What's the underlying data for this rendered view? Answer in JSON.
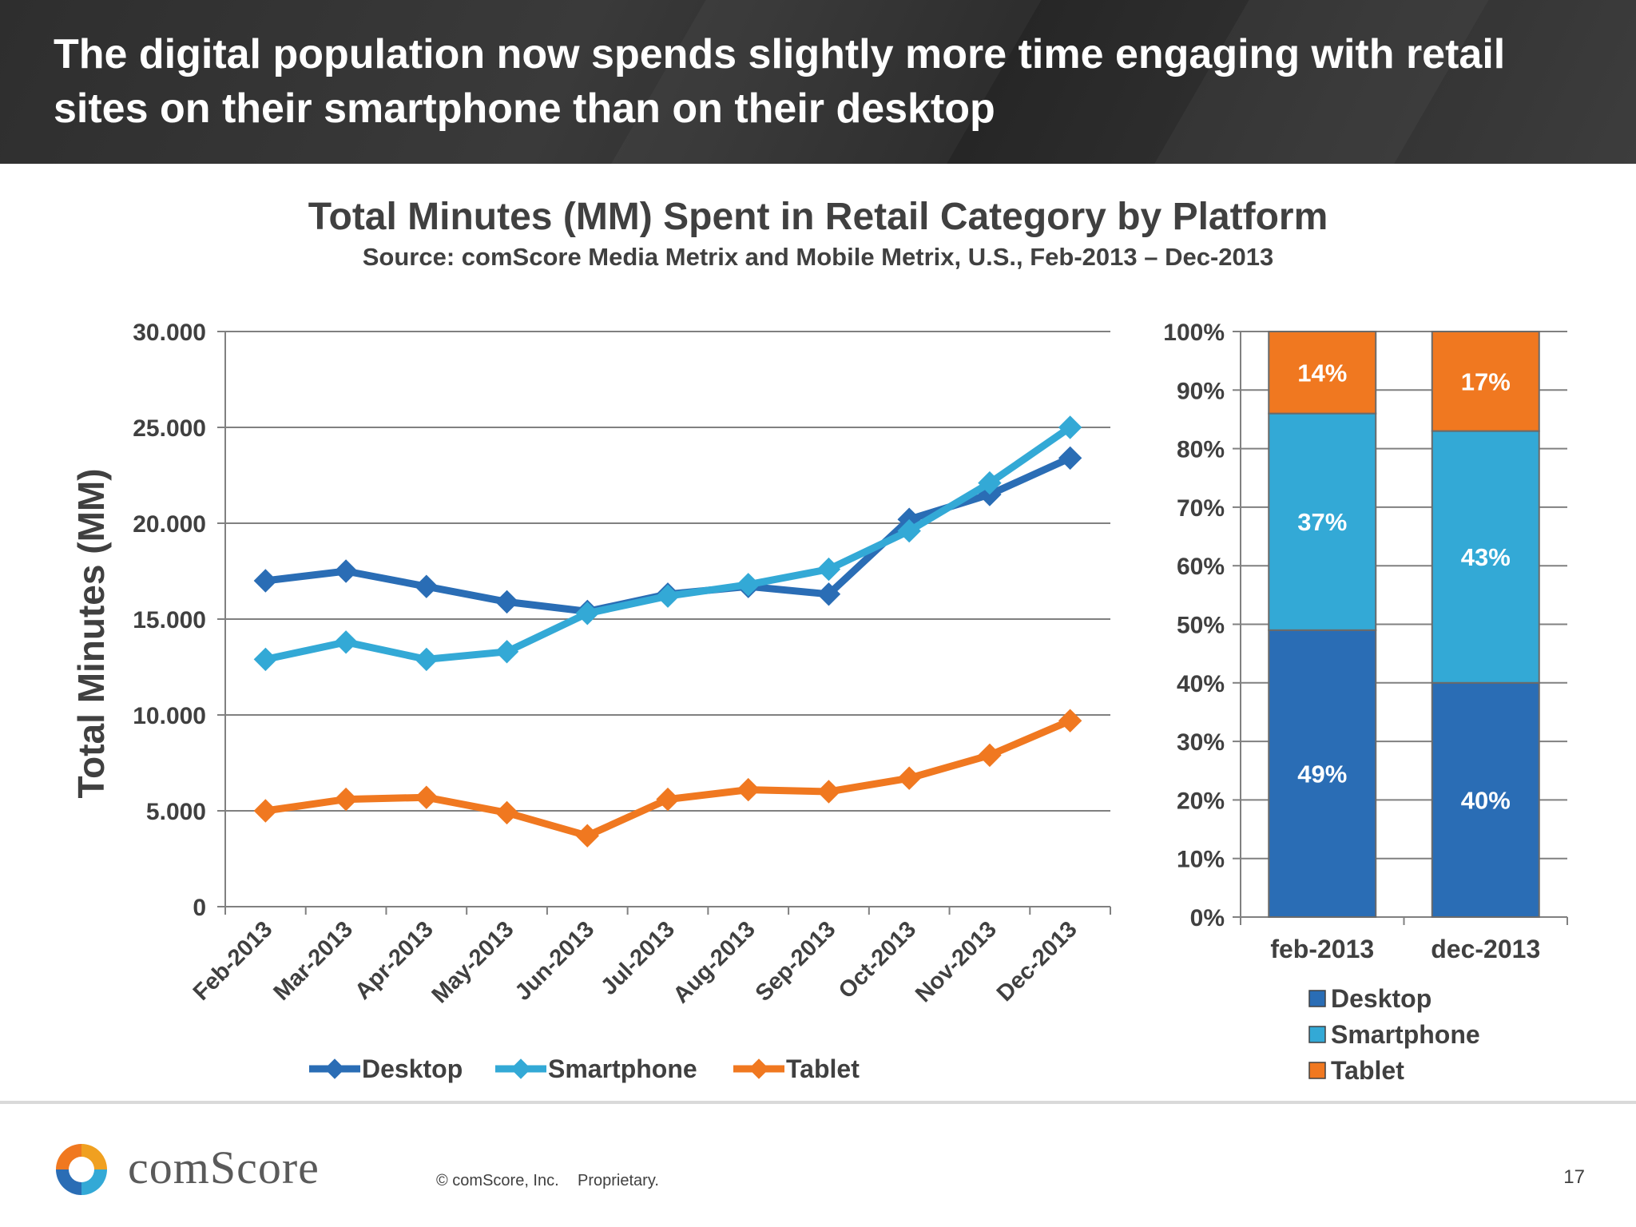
{
  "slide": {
    "title": "The digital population now spends slightly more time engaging with retail sites on their smartphone than on their desktop",
    "page_number": "17"
  },
  "chart": {
    "title": "Total Minutes (MM) Spent in Retail Category by Platform",
    "subtitle": "Source: comScore Media Metrix and Mobile Metrix, U.S., Feb-2013 – Dec-2013"
  },
  "footer": {
    "brand": "comScore",
    "copyright": "© comScore, Inc.",
    "proprietary": "Proprietary."
  },
  "colors": {
    "desktop": "#2a6db5",
    "smartphone": "#33a9d6",
    "tablet": "#f07820",
    "grid": "#808080",
    "text": "#404040"
  },
  "chart_data": [
    {
      "type": "line",
      "ylabel": "Total Minutes (MM)",
      "xlabel": "",
      "ylim": [
        0,
        30000
      ],
      "yticks": [
        "0",
        "5.000",
        "10.000",
        "15.000",
        "20.000",
        "25.000",
        "30.000"
      ],
      "categories": [
        "Feb-2013",
        "Mar-2013",
        "Apr-2013",
        "May-2013",
        "Jun-2013",
        "Jul-2013",
        "Aug-2013",
        "Sep-2013",
        "Oct-2013",
        "Nov-2013",
        "Dec-2013"
      ],
      "legend_position": "bottom",
      "grid": true,
      "series": [
        {
          "name": "Desktop",
          "color": "#2a6db5",
          "values": [
            17000,
            17500,
            16700,
            15900,
            15400,
            16300,
            16700,
            16300,
            20200,
            21500,
            23400
          ]
        },
        {
          "name": "Smartphone",
          "color": "#33a9d6",
          "values": [
            12900,
            13800,
            12900,
            13300,
            15300,
            16200,
            16800,
            17600,
            19600,
            22100,
            25000
          ]
        },
        {
          "name": "Tablet",
          "color": "#f07820",
          "values": [
            5000,
            5600,
            5700,
            4900,
            3700,
            5600,
            6100,
            6000,
            6700,
            7900,
            9700
          ]
        }
      ]
    },
    {
      "type": "bar",
      "stacked": true,
      "ylim": [
        0,
        100
      ],
      "yticks": [
        "0%",
        "10%",
        "20%",
        "30%",
        "40%",
        "50%",
        "60%",
        "70%",
        "80%",
        "90%",
        "100%"
      ],
      "categories": [
        "feb-2013",
        "dec-2013"
      ],
      "legend_position": "bottom-right",
      "grid": true,
      "series": [
        {
          "name": "Desktop",
          "color": "#2a6db5",
          "values": [
            49,
            40
          ],
          "labels": [
            "49%",
            "40%"
          ]
        },
        {
          "name": "Smartphone",
          "color": "#33a9d6",
          "values": [
            37,
            43
          ],
          "labels": [
            "37%",
            "43%"
          ]
        },
        {
          "name": "Tablet",
          "color": "#f07820",
          "values": [
            14,
            17
          ],
          "labels": [
            "14%",
            "17%"
          ]
        }
      ]
    }
  ]
}
